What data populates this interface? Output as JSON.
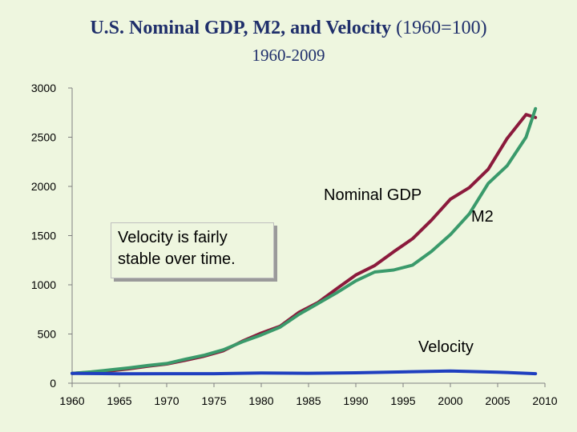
{
  "header": {
    "title": "U.S. Nominal GDP, M2, and Velocity",
    "title_suffix": "(1960=100)",
    "subtitle": "1960-2009"
  },
  "callout": {
    "text": "Velocity is fairly stable over time."
  },
  "chart_data": {
    "type": "line",
    "title": "U.S. Nominal GDP, M2, and Velocity (1960=100)",
    "subtitle": "1960-2009",
    "xlabel": "",
    "ylabel": "",
    "xlim": [
      1960,
      2010
    ],
    "ylim": [
      0,
      3000
    ],
    "x_ticks": [
      1960,
      1965,
      1970,
      1975,
      1980,
      1985,
      1990,
      1995,
      2000,
      2005,
      2010
    ],
    "y_ticks": [
      0,
      500,
      1000,
      1500,
      2000,
      2500,
      3000
    ],
    "grid": false,
    "series": [
      {
        "name": "Nominal GDP",
        "color": "#8b1a3c",
        "x": [
          1960,
          1962,
          1964,
          1966,
          1968,
          1970,
          1972,
          1974,
          1976,
          1978,
          1980,
          1982,
          1984,
          1986,
          1988,
          1990,
          1992,
          1994,
          1996,
          1998,
          2000,
          2002,
          2004,
          2006,
          2008,
          2009
        ],
        "values": [
          100,
          111,
          124,
          146,
          172,
          195,
          233,
          276,
          330,
          427,
          509,
          580,
          720,
          820,
          962,
          1100,
          1196,
          1336,
          1468,
          1657,
          1870,
          1987,
          2174,
          2487,
          2730,
          2700
        ]
      },
      {
        "name": "M2",
        "color": "#3a9a6b",
        "x": [
          1960,
          1962,
          1964,
          1966,
          1968,
          1970,
          1972,
          1974,
          1976,
          1978,
          1980,
          1982,
          1984,
          1986,
          1988,
          1990,
          1992,
          1994,
          1996,
          1998,
          2000,
          2002,
          2004,
          2006,
          2008,
          2009
        ],
        "values": [
          100,
          115,
          135,
          155,
          180,
          200,
          245,
          285,
          340,
          420,
          490,
          570,
          700,
          810,
          920,
          1040,
          1130,
          1150,
          1200,
          1340,
          1510,
          1720,
          2030,
          2210,
          2500,
          2790
        ]
      },
      {
        "name": "Velocity",
        "color": "#1f3fbf",
        "x": [
          1960,
          1965,
          1970,
          1975,
          1980,
          1985,
          1990,
          1995,
          2000,
          2005,
          2009
        ],
        "values": [
          100,
          96,
          97,
          97,
          104,
          101,
          106,
          115,
          124,
          112,
          97
        ]
      }
    ]
  }
}
